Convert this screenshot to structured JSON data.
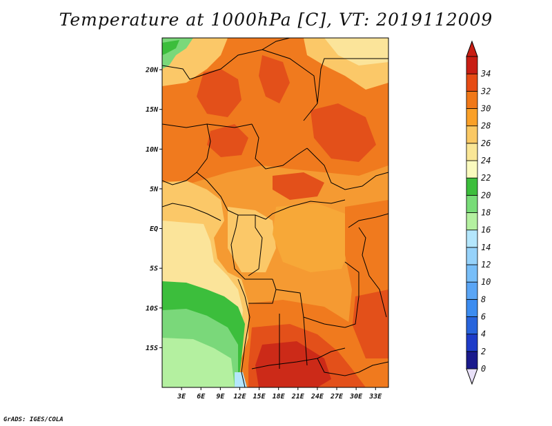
{
  "title": "Temperature at 1000hPa [C], VT: 2019112009",
  "credit": "GrADS: IGES/COLA",
  "map": {
    "lon_range": [
      0,
      35
    ],
    "lat_range": [
      -20,
      24
    ],
    "lat_ticks": [
      {
        "value": 20,
        "label": "20N"
      },
      {
        "value": 15,
        "label": "15N"
      },
      {
        "value": 10,
        "label": "10N"
      },
      {
        "value": 5,
        "label": "5N"
      },
      {
        "value": 0,
        "label": "EQ"
      },
      {
        "value": -5,
        "label": "5S"
      },
      {
        "value": -10,
        "label": "10S"
      },
      {
        "value": -15,
        "label": "15S"
      }
    ],
    "lon_ticks": [
      {
        "value": 3,
        "label": "3E"
      },
      {
        "value": 6,
        "label": "6E"
      },
      {
        "value": 9,
        "label": "9E"
      },
      {
        "value": 12,
        "label": "12E"
      },
      {
        "value": 15,
        "label": "15E"
      },
      {
        "value": 18,
        "label": "18E"
      },
      {
        "value": 21,
        "label": "21E"
      },
      {
        "value": 24,
        "label": "24E"
      },
      {
        "value": 27,
        "label": "27E"
      },
      {
        "value": 30,
        "label": "30E"
      },
      {
        "value": 33,
        "label": "33E"
      }
    ]
  },
  "colorbar": {
    "levels": [
      "0",
      "2",
      "4",
      "6",
      "8",
      "10",
      "12",
      "14",
      "16",
      "18",
      "20",
      "22",
      "24",
      "26",
      "28",
      "30",
      "32",
      "34"
    ],
    "colors": [
      "#1a1a8c",
      "#1e3cc8",
      "#2864dc",
      "#3c8cf0",
      "#5aa5f5",
      "#78bef8",
      "#96d2fa",
      "#b4e6fc",
      "#b4f0a0",
      "#78dc78",
      "#3cbe3c",
      "#fafabe",
      "#fae696",
      "#fac864",
      "#faa028",
      "#f07818",
      "#e64b14",
      "#c81e14"
    ],
    "under_color": "#e8e0f8",
    "over_color": "#c81e14"
  }
}
